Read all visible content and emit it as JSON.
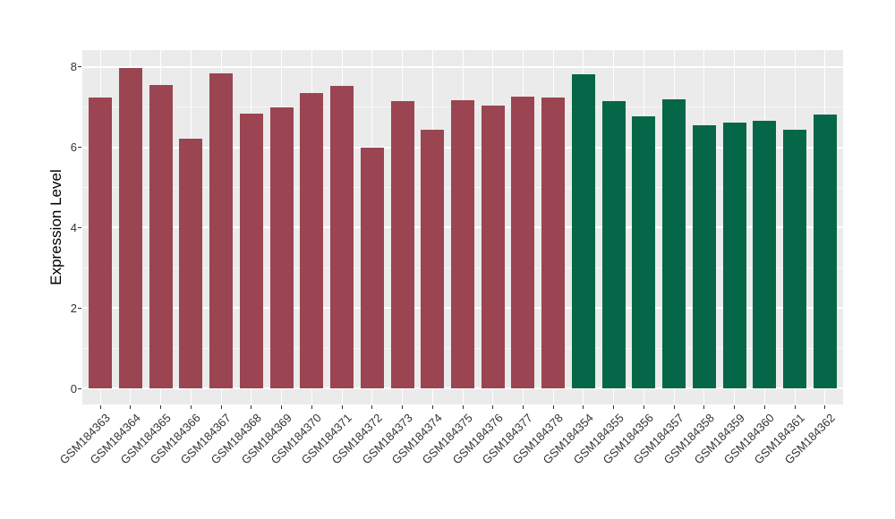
{
  "figure": {
    "background": "#FFFFFF",
    "panel_background": "#EBEBEB",
    "gridline_color": "#FFFFFF",
    "tick_color": "#333333",
    "axis_text_color": "#333333",
    "axis_title_color": "#000000"
  },
  "chart_data": {
    "type": "bar",
    "title": "",
    "xlabel": "",
    "ylabel": "Expression Level",
    "ylim": [
      0,
      8.4
    ],
    "yticks": [
      0,
      2,
      4,
      6,
      8
    ],
    "ytick_labels": [
      "0",
      "2",
      "4",
      "6",
      "8"
    ],
    "minor_yticks": [
      1,
      3,
      5,
      7
    ],
    "grid": true,
    "legend_position": "none",
    "x_label_angle_deg": 45,
    "categories": [
      "GSM184363",
      "GSM184364",
      "GSM184365",
      "GSM184366",
      "GSM184367",
      "GSM184368",
      "GSM184369",
      "GSM184370",
      "GSM184371",
      "GSM184372",
      "GSM184373",
      "GSM184374",
      "GSM184375",
      "GSM184376",
      "GSM184377",
      "GSM184378",
      "GSM184354",
      "GSM184355",
      "GSM184356",
      "GSM184357",
      "GSM184358",
      "GSM184359",
      "GSM184360",
      "GSM184361",
      "GSM184362"
    ],
    "values": [
      7.25,
      7.98,
      7.56,
      6.21,
      7.83,
      6.83,
      7.0,
      7.35,
      7.54,
      5.99,
      7.15,
      6.44,
      7.17,
      7.05,
      7.26,
      7.25,
      7.81,
      7.15,
      6.78,
      7.19,
      6.54,
      6.62,
      6.67,
      6.43,
      6.81
    ],
    "bar_colors": [
      "#9A4551",
      "#9A4551",
      "#9A4551",
      "#9A4551",
      "#9A4551",
      "#9A4551",
      "#9A4551",
      "#9A4551",
      "#9A4551",
      "#9A4551",
      "#9A4551",
      "#9A4551",
      "#9A4551",
      "#9A4551",
      "#9A4551",
      "#9A4551",
      "#066748",
      "#066748",
      "#066748",
      "#066748",
      "#066748",
      "#066748",
      "#066748",
      "#066748",
      "#066748"
    ],
    "group_colors": {
      "red_group": "#9A4551",
      "green_group": "#066748"
    }
  }
}
